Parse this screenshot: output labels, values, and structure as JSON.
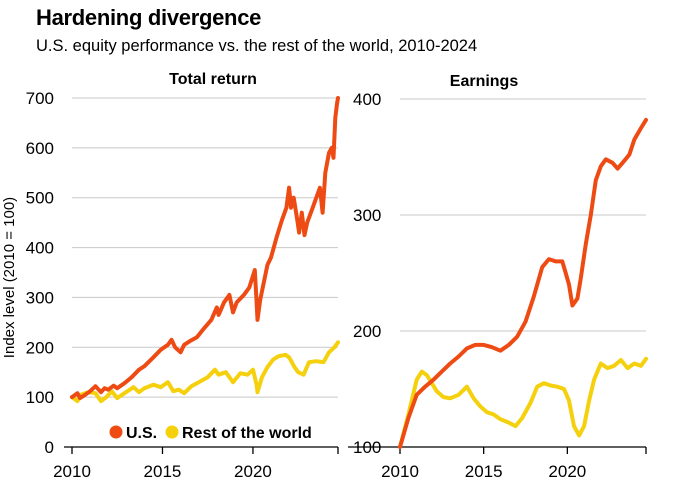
{
  "title": "Hardening divergence",
  "subtitle": "U.S. equity performance vs. the rest of the world, 2010-2024",
  "colors": {
    "us": "#ee4b14",
    "row": "#f5d00d",
    "grid": "#c8c8c8",
    "axis": "#000000"
  },
  "legend": [
    {
      "label": "U.S.",
      "color": "#ee4b14"
    },
    {
      "label": "Rest of the world",
      "color": "#f5d00d"
    }
  ],
  "chart_data": [
    {
      "type": "line",
      "title": "Total return",
      "ylabel": "Index level (2010 = 100)",
      "xlabel": "",
      "xlim": [
        2010,
        2024.7
      ],
      "ylim": [
        0,
        700
      ],
      "xticks": [
        2010,
        2015,
        2020
      ],
      "yticks": [
        0,
        100,
        200,
        300,
        400,
        500,
        600,
        700
      ],
      "grid": true,
      "legend_position": "bottom-right",
      "series": [
        {
          "name": "U.S.",
          "color": "#ee4b14",
          "points": [
            [
              2010,
              100
            ],
            [
              2010.3,
              108
            ],
            [
              2010.45,
              98
            ],
            [
              2010.7,
              104
            ],
            [
              2011,
              112
            ],
            [
              2011.3,
              122
            ],
            [
              2011.6,
              110
            ],
            [
              2011.8,
              118
            ],
            [
              2012,
              115
            ],
            [
              2012.3,
              123
            ],
            [
              2012.5,
              118
            ],
            [
              2012.9,
              128
            ],
            [
              2013.3,
              140
            ],
            [
              2013.7,
              155
            ],
            [
              2014,
              162
            ],
            [
              2014.5,
              180
            ],
            [
              2014.9,
              195
            ],
            [
              2015.3,
              205
            ],
            [
              2015.5,
              215
            ],
            [
              2015.7,
              200
            ],
            [
              2016.0,
              190
            ],
            [
              2016.2,
              205
            ],
            [
              2016.5,
              212
            ],
            [
              2016.9,
              220
            ],
            [
              2017.3,
              238
            ],
            [
              2017.7,
              255
            ],
            [
              2018.0,
              280
            ],
            [
              2018.1,
              265
            ],
            [
              2018.4,
              290
            ],
            [
              2018.7,
              305
            ],
            [
              2018.9,
              270
            ],
            [
              2019.1,
              290
            ],
            [
              2019.5,
              305
            ],
            [
              2019.8,
              320
            ],
            [
              2020.1,
              355
            ],
            [
              2020.2,
              290
            ],
            [
              2020.25,
              255
            ],
            [
              2020.4,
              295
            ],
            [
              2020.6,
              330
            ],
            [
              2020.8,
              365
            ],
            [
              2021.0,
              380
            ],
            [
              2021.3,
              420
            ],
            [
              2021.6,
              455
            ],
            [
              2021.85,
              480
            ],
            [
              2022.0,
              520
            ],
            [
              2022.1,
              480
            ],
            [
              2022.25,
              500
            ],
            [
              2022.45,
              455
            ],
            [
              2022.55,
              430
            ],
            [
              2022.7,
              470
            ],
            [
              2022.85,
              425
            ],
            [
              2023.0,
              450
            ],
            [
              2023.3,
              480
            ],
            [
              2023.5,
              500
            ],
            [
              2023.7,
              520
            ],
            [
              2023.85,
              470
            ],
            [
              2024.0,
              550
            ],
            [
              2024.2,
              590
            ],
            [
              2024.35,
              600
            ],
            [
              2024.45,
              580
            ],
            [
              2024.55,
              660
            ],
            [
              2024.65,
              690
            ],
            [
              2024.7,
              700
            ]
          ]
        },
        {
          "name": "Rest of the world",
          "color": "#f5d00d",
          "points": [
            [
              2010,
              100
            ],
            [
              2010.3,
              92
            ],
            [
              2010.5,
              105
            ],
            [
              2010.9,
              110
            ],
            [
              2011.3,
              108
            ],
            [
              2011.6,
              92
            ],
            [
              2011.9,
              100
            ],
            [
              2012.2,
              112
            ],
            [
              2012.5,
              98
            ],
            [
              2012.9,
              108
            ],
            [
              2013.4,
              120
            ],
            [
              2013.7,
              110
            ],
            [
              2014,
              118
            ],
            [
              2014.5,
              125
            ],
            [
              2014.9,
              120
            ],
            [
              2015.3,
              130
            ],
            [
              2015.6,
              112
            ],
            [
              2015.9,
              115
            ],
            [
              2016.2,
              108
            ],
            [
              2016.6,
              122
            ],
            [
              2017.0,
              130
            ],
            [
              2017.5,
              140
            ],
            [
              2017.9,
              155
            ],
            [
              2018.1,
              145
            ],
            [
              2018.5,
              150
            ],
            [
              2018.9,
              130
            ],
            [
              2019.3,
              148
            ],
            [
              2019.7,
              145
            ],
            [
              2020.0,
              155
            ],
            [
              2020.2,
              125
            ],
            [
              2020.25,
              110
            ],
            [
              2020.5,
              140
            ],
            [
              2020.8,
              160
            ],
            [
              2021.1,
              175
            ],
            [
              2021.4,
              182
            ],
            [
              2021.8,
              185
            ],
            [
              2022.0,
              180
            ],
            [
              2022.3,
              160
            ],
            [
              2022.5,
              150
            ],
            [
              2022.8,
              145
            ],
            [
              2023.1,
              170
            ],
            [
              2023.5,
              172
            ],
            [
              2023.9,
              170
            ],
            [
              2024.2,
              190
            ],
            [
              2024.5,
              200
            ],
            [
              2024.7,
              210
            ]
          ]
        }
      ]
    },
    {
      "type": "line",
      "title": "Earnings",
      "ylabel": "",
      "xlabel": "",
      "xlim": [
        2010,
        2024.7
      ],
      "ylim": [
        100,
        400
      ],
      "xticks": [
        2010,
        2015,
        2020
      ],
      "yticks": [
        100,
        200,
        300,
        400
      ],
      "grid": true,
      "series": [
        {
          "name": "U.S.",
          "color": "#ee4b14",
          "points": [
            [
              2010,
              100
            ],
            [
              2010.5,
              125
            ],
            [
              2011,
              145
            ],
            [
              2011.5,
              152
            ],
            [
              2012,
              158
            ],
            [
              2012.5,
              165
            ],
            [
              2013,
              172
            ],
            [
              2013.5,
              178
            ],
            [
              2014,
              185
            ],
            [
              2014.5,
              188
            ],
            [
              2015,
              188
            ],
            [
              2015.5,
              186
            ],
            [
              2016,
              183
            ],
            [
              2016.5,
              188
            ],
            [
              2017,
              195
            ],
            [
              2017.5,
              208
            ],
            [
              2018,
              230
            ],
            [
              2018.5,
              255
            ],
            [
              2018.9,
              262
            ],
            [
              2019.3,
              260
            ],
            [
              2019.7,
              260
            ],
            [
              2019.9,
              250
            ],
            [
              2020.1,
              240
            ],
            [
              2020.3,
              222
            ],
            [
              2020.6,
              228
            ],
            [
              2020.8,
              245
            ],
            [
              2021.1,
              275
            ],
            [
              2021.4,
              300
            ],
            [
              2021.7,
              330
            ],
            [
              2022.0,
              342
            ],
            [
              2022.3,
              348
            ],
            [
              2022.7,
              345
            ],
            [
              2023.0,
              340
            ],
            [
              2023.3,
              345
            ],
            [
              2023.7,
              352
            ],
            [
              2024.0,
              365
            ],
            [
              2024.4,
              375
            ],
            [
              2024.7,
              382
            ]
          ]
        },
        {
          "name": "Rest of the world",
          "color": "#f5d00d",
          "points": [
            [
              2010,
              100
            ],
            [
              2010.5,
              128
            ],
            [
              2011,
              158
            ],
            [
              2011.3,
              165
            ],
            [
              2011.6,
              162
            ],
            [
              2011.9,
              155
            ],
            [
              2012.2,
              148
            ],
            [
              2012.6,
              143
            ],
            [
              2013,
              142
            ],
            [
              2013.5,
              145
            ],
            [
              2014,
              152
            ],
            [
              2014.4,
              142
            ],
            [
              2014.8,
              135
            ],
            [
              2015.2,
              130
            ],
            [
              2015.6,
              128
            ],
            [
              2016.0,
              124
            ],
            [
              2016.5,
              121
            ],
            [
              2016.9,
              118
            ],
            [
              2017.3,
              125
            ],
            [
              2017.8,
              138
            ],
            [
              2018.2,
              152
            ],
            [
              2018.6,
              155
            ],
            [
              2019.0,
              153
            ],
            [
              2019.4,
              152
            ],
            [
              2019.8,
              150
            ],
            [
              2020.1,
              140
            ],
            [
              2020.4,
              118
            ],
            [
              2020.7,
              110
            ],
            [
              2021.0,
              118
            ],
            [
              2021.3,
              140
            ],
            [
              2021.6,
              158
            ],
            [
              2022.0,
              172
            ],
            [
              2022.4,
              168
            ],
            [
              2022.8,
              170
            ],
            [
              2023.2,
              175
            ],
            [
              2023.6,
              168
            ],
            [
              2024.0,
              172
            ],
            [
              2024.4,
              170
            ],
            [
              2024.7,
              176
            ]
          ]
        }
      ]
    }
  ]
}
